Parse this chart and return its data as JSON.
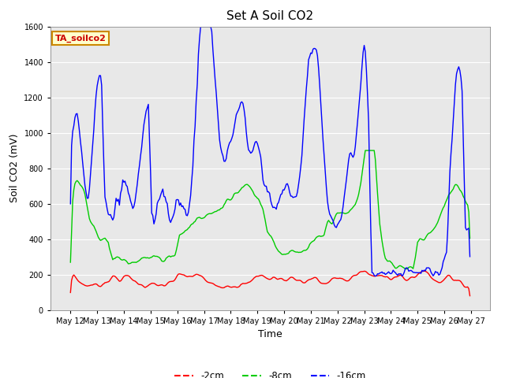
{
  "title": "Set A Soil CO2",
  "ylabel": "Soil CO2 (mV)",
  "xlabel": "Time",
  "ylim": [
    0,
    1600
  ],
  "yticks": [
    0,
    200,
    400,
    600,
    800,
    1000,
    1200,
    1400,
    1600
  ],
  "xtick_labels": [
    "May 12",
    "May 13",
    "May 14",
    "May 15",
    "May 16",
    "May 17",
    "May 18",
    "May 19",
    "May 20",
    "May 21",
    "May 22",
    "May 23",
    "May 24",
    "May 25",
    "May 26",
    "May 27"
  ],
  "legend_label": "TA_soilco2",
  "legend_box_color": "#ffffcc",
  "legend_box_edge": "#cc8800",
  "legend_text_color": "#cc0000",
  "line_colors": [
    "#ff0000",
    "#00cc00",
    "#0000ff"
  ],
  "line_labels": [
    "-2cm",
    "-8cm",
    "-16cm"
  ],
  "line_width": 1.0,
  "background_color": "#e8e8e8",
  "grid_color": "#ffffff",
  "title_fontsize": 11,
  "axis_fontsize": 9,
  "tick_fontsize": 7
}
